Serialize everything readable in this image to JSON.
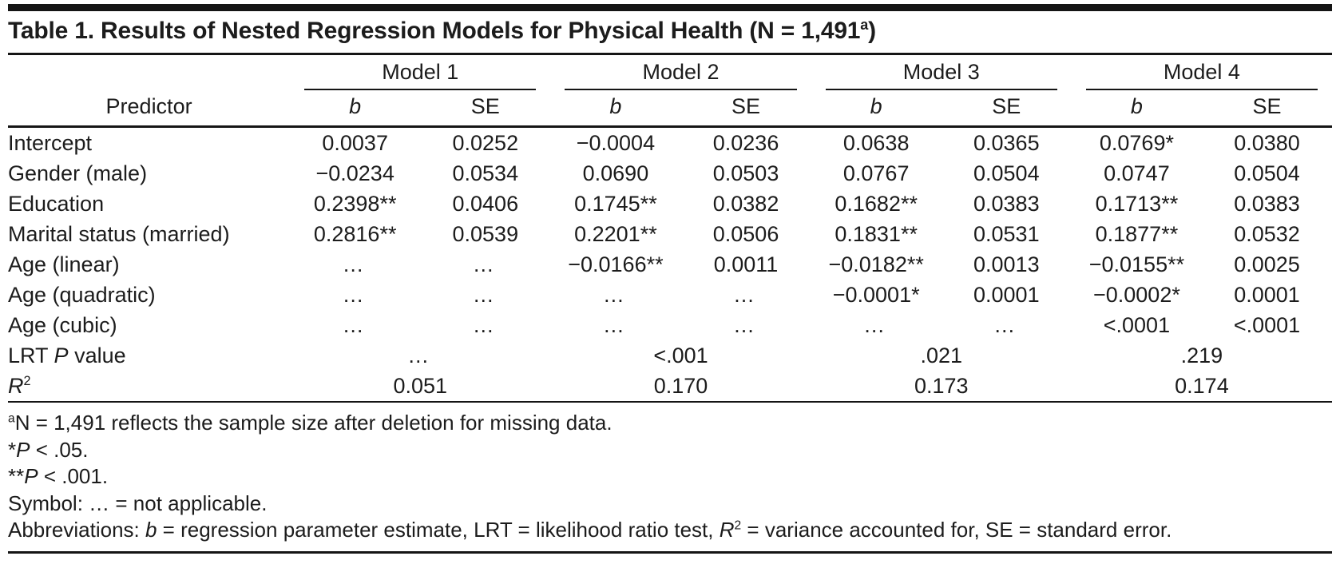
{
  "colors": {
    "text": "#1c1c1c",
    "rule": "#151515",
    "background": "#ffffff"
  },
  "title": {
    "parts": [
      {
        "t": "Table 1. Results of Nested Regression Models for Physical Health (N = 1,491"
      },
      {
        "t": "a",
        "sup": true
      },
      {
        "t": ")"
      }
    ]
  },
  "table": {
    "predictor_header": "Predictor",
    "models": [
      "Model 1",
      "Model 2",
      "Model 3",
      "Model 4"
    ],
    "subcolumns": {
      "b": "b",
      "se": "SE"
    },
    "rows": [
      {
        "predictor": "Intercept",
        "cells": [
          "0.0037",
          "0.0252",
          "−0.0004",
          "0.0236",
          "0.0638",
          "0.0365",
          "0.0769*",
          "0.0380"
        ]
      },
      {
        "predictor": "Gender (male)",
        "cells": [
          "−0.0234",
          "0.0534",
          "0.0690",
          "0.0503",
          "0.0767",
          "0.0504",
          "0.0747",
          "0.0504"
        ]
      },
      {
        "predictor": "Education",
        "cells": [
          "0.2398**",
          "0.0406",
          "0.1745**",
          "0.0382",
          "0.1682**",
          "0.0383",
          "0.1713**",
          "0.0383"
        ]
      },
      {
        "predictor": "Marital status (married)",
        "cells": [
          "0.2816**",
          "0.0539",
          "0.2201**",
          "0.0506",
          "0.1831**",
          "0.0531",
          "0.1877**",
          "0.0532"
        ]
      },
      {
        "predictor": "Age (linear)",
        "cells": [
          "…",
          "…",
          "−0.0166**",
          "0.0011",
          "−0.0182**",
          "0.0013",
          "−0.0155**",
          "0.0025"
        ]
      },
      {
        "predictor": "Age (quadratic)",
        "cells": [
          "…",
          "…",
          "…",
          "…",
          "−0.0001*",
          "0.0001",
          "−0.0002*",
          "0.0001"
        ]
      },
      {
        "predictor": "Age (cubic)",
        "cells": [
          "…",
          "…",
          "…",
          "…",
          "…",
          "…",
          "<.0001",
          "<.0001"
        ]
      }
    ],
    "span_rows": [
      {
        "name": "lrt-p-value",
        "label_parts": [
          {
            "t": "LRT "
          },
          {
            "t": "P",
            "i": true
          },
          {
            "t": " value"
          }
        ],
        "values": [
          "…",
          "<.001",
          ".021",
          ".219"
        ]
      },
      {
        "name": "r-squared",
        "label_parts": [
          {
            "t": "R",
            "i": true
          },
          {
            "t": "2",
            "sup": true
          }
        ],
        "values": [
          "0.051",
          "0.170",
          "0.173",
          "0.174"
        ]
      }
    ]
  },
  "footnotes": [
    {
      "name": "sample-size-note",
      "parts": [
        {
          "t": "a",
          "sup": true
        },
        {
          "t": "N = 1,491 reflects the sample size after deletion for missing data."
        }
      ]
    },
    {
      "name": "p-05-note",
      "parts": [
        {
          "t": "*"
        },
        {
          "t": "P",
          "i": true
        },
        {
          "t": " < .05."
        }
      ]
    },
    {
      "name": "p-001-note",
      "parts": [
        {
          "t": "**"
        },
        {
          "t": "P",
          "i": true
        },
        {
          "t": " < .001."
        }
      ]
    },
    {
      "name": "symbol-note",
      "parts": [
        {
          "t": "Symbol: … = not applicable."
        }
      ]
    },
    {
      "name": "abbreviations-note",
      "parts": [
        {
          "t": "Abbreviations: "
        },
        {
          "t": "b",
          "i": true
        },
        {
          "t": " = regression parameter estimate, LRT = likelihood ratio test, "
        },
        {
          "t": "R",
          "i": true
        },
        {
          "t": "2",
          "sup": true
        },
        {
          "t": " = variance accounted for, SE = standard error."
        }
      ]
    }
  ]
}
